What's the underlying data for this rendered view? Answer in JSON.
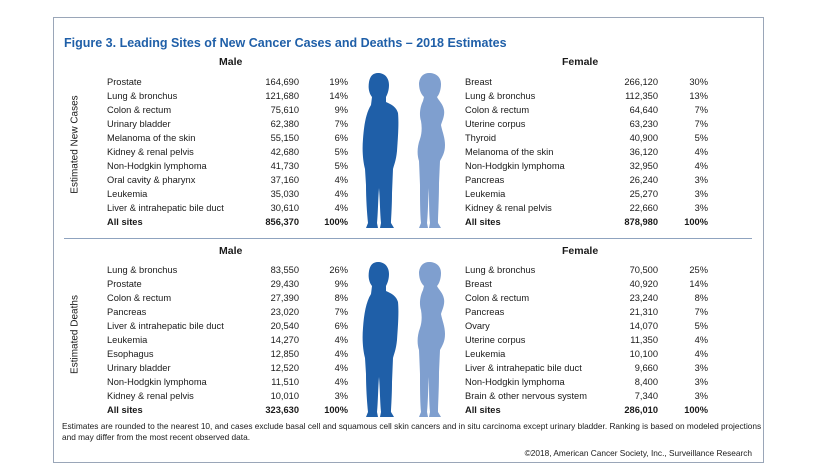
{
  "title": "Figure 3. Leading Sites of New Cancer Cases and Deaths – 2018 Estimates",
  "colors": {
    "title": "#1f5fa8",
    "male": "#1f5fa8",
    "female": "#7f9fcf"
  },
  "cases": {
    "label": "Estimated New Cases",
    "male": {
      "heading": "Male",
      "rows": [
        {
          "site": "Prostate",
          "count": "164,690",
          "pct": "19%"
        },
        {
          "site": "Lung & bronchus",
          "count": "121,680",
          "pct": "14%"
        },
        {
          "site": "Colon & rectum",
          "count": "75,610",
          "pct": "9%"
        },
        {
          "site": "Urinary bladder",
          "count": "62,380",
          "pct": "7%"
        },
        {
          "site": "Melanoma of the skin",
          "count": "55,150",
          "pct": "6%"
        },
        {
          "site": "Kidney & renal pelvis",
          "count": "42,680",
          "pct": "5%"
        },
        {
          "site": "Non-Hodgkin lymphoma",
          "count": "41,730",
          "pct": "5%"
        },
        {
          "site": "Oral cavity & pharynx",
          "count": "37,160",
          "pct": "4%"
        },
        {
          "site": "Leukemia",
          "count": "35,030",
          "pct": "4%"
        },
        {
          "site": "Liver & intrahepatic bile duct",
          "count": "30,610",
          "pct": "4%"
        }
      ],
      "total": {
        "site": "All sites",
        "count": "856,370",
        "pct": "100%"
      }
    },
    "female": {
      "heading": "Female",
      "rows": [
        {
          "site": "Breast",
          "count": "266,120",
          "pct": "30%"
        },
        {
          "site": "Lung & bronchus",
          "count": "112,350",
          "pct": "13%"
        },
        {
          "site": "Colon & rectum",
          "count": "64,640",
          "pct": "7%"
        },
        {
          "site": "Uterine corpus",
          "count": "63,230",
          "pct": "7%"
        },
        {
          "site": "Thyroid",
          "count": "40,900",
          "pct": "5%"
        },
        {
          "site": "Melanoma of the skin",
          "count": "36,120",
          "pct": "4%"
        },
        {
          "site": "Non-Hodgkin lymphoma",
          "count": "32,950",
          "pct": "4%"
        },
        {
          "site": "Pancreas",
          "count": "26,240",
          "pct": "3%"
        },
        {
          "site": "Leukemia",
          "count": "25,270",
          "pct": "3%"
        },
        {
          "site": "Kidney & renal pelvis",
          "count": "22,660",
          "pct": "3%"
        }
      ],
      "total": {
        "site": "All sites",
        "count": "878,980",
        "pct": "100%"
      }
    }
  },
  "deaths": {
    "label": "Estimated Deaths",
    "male": {
      "heading": "Male",
      "rows": [
        {
          "site": "Lung & bronchus",
          "count": "83,550",
          "pct": "26%"
        },
        {
          "site": "Prostate",
          "count": "29,430",
          "pct": "9%"
        },
        {
          "site": "Colon & rectum",
          "count": "27,390",
          "pct": "8%"
        },
        {
          "site": "Pancreas",
          "count": "23,020",
          "pct": "7%"
        },
        {
          "site": "Liver & intrahepatic bile duct",
          "count": "20,540",
          "pct": "6%"
        },
        {
          "site": "Leukemia",
          "count": "14,270",
          "pct": "4%"
        },
        {
          "site": "Esophagus",
          "count": "12,850",
          "pct": "4%"
        },
        {
          "site": "Urinary bladder",
          "count": "12,520",
          "pct": "4%"
        },
        {
          "site": "Non-Hodgkin lymphoma",
          "count": "11,510",
          "pct": "4%"
        },
        {
          "site": "Kidney & renal pelvis",
          "count": "10,010",
          "pct": "3%"
        }
      ],
      "total": {
        "site": "All sites",
        "count": "323,630",
        "pct": "100%"
      }
    },
    "female": {
      "heading": "Female",
      "rows": [
        {
          "site": "Lung & bronchus",
          "count": "70,500",
          "pct": "25%"
        },
        {
          "site": "Breast",
          "count": "40,920",
          "pct": "14%"
        },
        {
          "site": "Colon & rectum",
          "count": "23,240",
          "pct": "8%"
        },
        {
          "site": "Pancreas",
          "count": "21,310",
          "pct": "7%"
        },
        {
          "site": "Ovary",
          "count": "14,070",
          "pct": "5%"
        },
        {
          "site": "Uterine corpus",
          "count": "11,350",
          "pct": "4%"
        },
        {
          "site": "Leukemia",
          "count": "10,100",
          "pct": "4%"
        },
        {
          "site": "Liver & intrahepatic bile duct",
          "count": "9,660",
          "pct": "3%"
        },
        {
          "site": "Non-Hodgkin lymphoma",
          "count": "8,400",
          "pct": "3%"
        },
        {
          "site": "Brain & other nervous system",
          "count": "7,340",
          "pct": "3%"
        }
      ],
      "total": {
        "site": "All sites",
        "count": "286,010",
        "pct": "100%"
      }
    }
  },
  "footnote": "Estimates are rounded to the nearest 10, and cases exclude basal cell and squamous cell skin cancers and in situ carcinoma except urinary bladder. Ranking is based on modeled projections and may differ from the most recent observed data.",
  "copyright": "©2018, American Cancer Society, Inc., Surveillance Research"
}
